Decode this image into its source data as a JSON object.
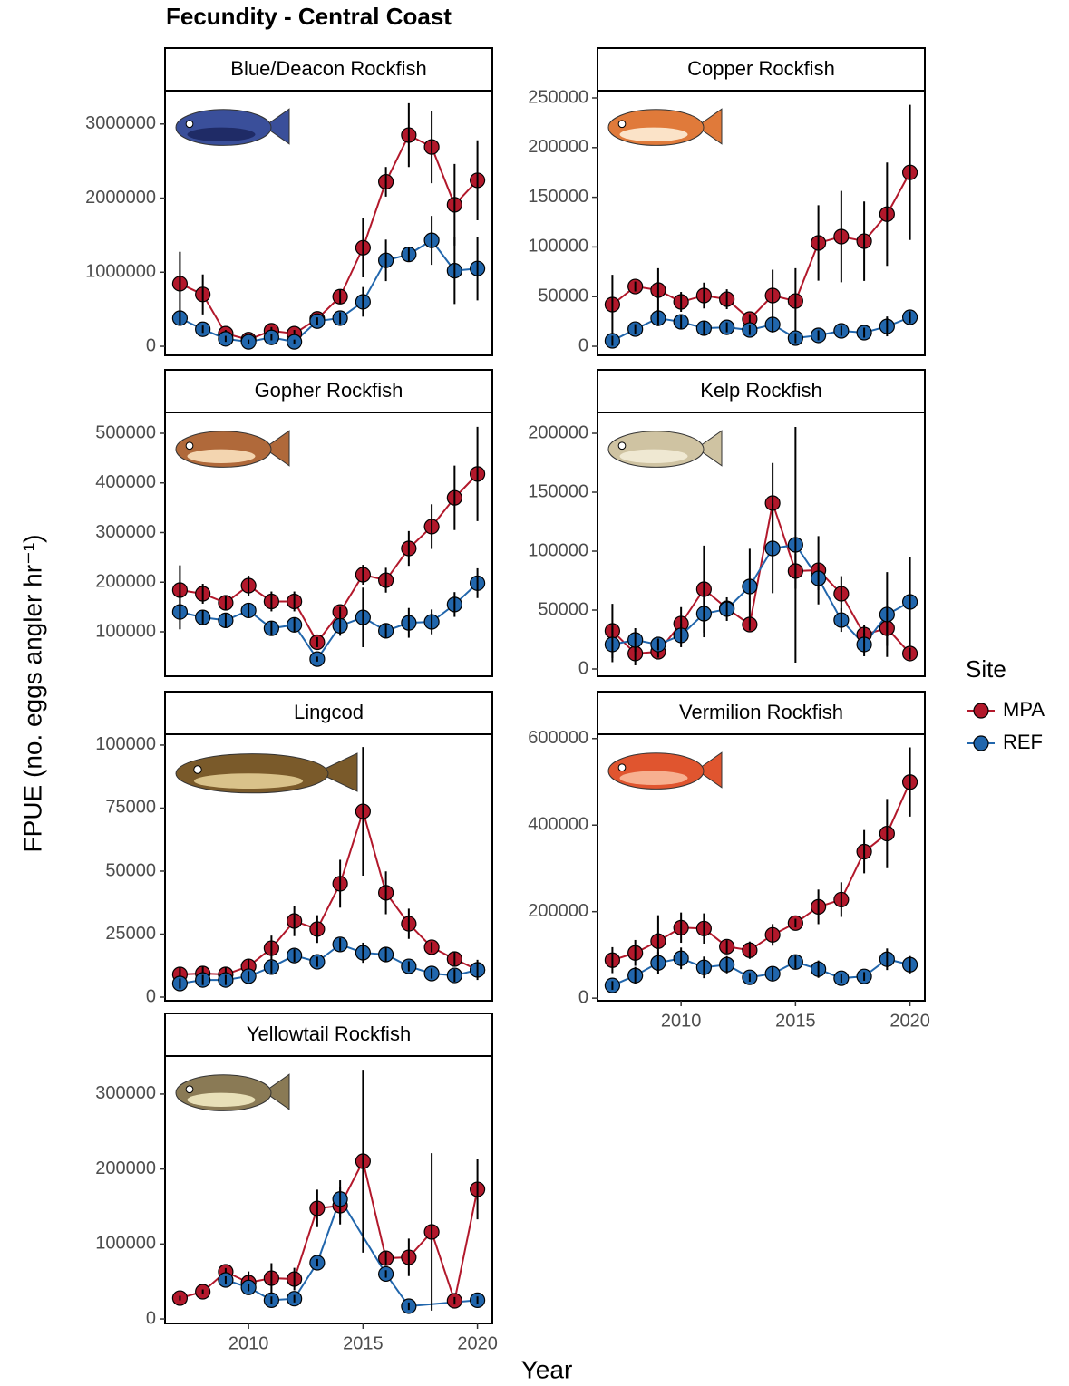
{
  "title": "Fecundity - Central Coast",
  "xlabel": "Year",
  "ylabel": "FPUE (no. eggs angler hr⁻¹)",
  "legend_title": "Site",
  "chart_data": [
    {
      "type": "line",
      "title": "Blue/Deacon Rockfish",
      "x": [
        2007,
        2008,
        2009,
        2010,
        2011,
        2012,
        2013,
        2014,
        2015,
        2016,
        2017,
        2018,
        2019,
        2020
      ],
      "xlim": [
        2006.35,
        2020.65
      ],
      "ylim": [
        -122000,
        3450000
      ],
      "yticks": [
        0,
        1000000,
        2000000,
        3000000
      ],
      "series": [
        {
          "name": "MPA",
          "color": "#b2182b",
          "values": [
            845000,
            700000,
            170000,
            90000,
            210000,
            170000,
            370000,
            670000,
            1330000,
            2220000,
            2850000,
            2690000,
            1910000,
            2240000
          ],
          "errors": [
            430000,
            270000,
            50000,
            40000,
            50000,
            50000,
            50000,
            100000,
            400000,
            200000,
            430000,
            490000,
            550000,
            540000
          ]
        },
        {
          "name": "REF",
          "color": "#2166ac",
          "values": [
            380000,
            230000,
            100000,
            60000,
            120000,
            60000,
            340000,
            380000,
            600000,
            1160000,
            1240000,
            1430000,
            1020000,
            1050000
          ],
          "errors": [
            100000,
            50000,
            40000,
            30000,
            40000,
            30000,
            50000,
            80000,
            200000,
            280000,
            100000,
            330000,
            450000,
            430000
          ]
        }
      ]
    },
    {
      "type": "line",
      "title": "Copper Rockfish",
      "x": [
        2007,
        2008,
        2009,
        2010,
        2011,
        2012,
        2013,
        2014,
        2015,
        2016,
        2017,
        2018,
        2019,
        2020
      ],
      "xlim": [
        2006.35,
        2020.65
      ],
      "ylim": [
        -9100,
        257300
      ],
      "yticks": [
        0,
        50000,
        100000,
        150000,
        200000,
        250000
      ],
      "series": [
        {
          "name": "MPA",
          "color": "#b2182b",
          "values": [
            42000,
            60200,
            56600,
            44700,
            51100,
            47400,
            27400,
            51100,
            45600,
            104000,
            110400,
            105800,
            133000,
            175000
          ],
          "errors": [
            30000,
            5000,
            22000,
            10000,
            13000,
            10000,
            5000,
            26000,
            33000,
            38000,
            46000,
            40000,
            52000,
            68000
          ]
        },
        {
          "name": "REF",
          "color": "#2166ac",
          "values": [
            5500,
            17300,
            28300,
            24600,
            18200,
            19100,
            16400,
            21900,
            8200,
            11000,
            15500,
            13700,
            20000,
            29200
          ],
          "errors": [
            5000,
            5000,
            8000,
            7000,
            7000,
            5000,
            5000,
            8000,
            5000,
            5000,
            5000,
            5000,
            10000,
            6000
          ]
        }
      ]
    },
    {
      "type": "line",
      "title": "Gopher Rockfish",
      "x": [
        2007,
        2008,
        2009,
        2010,
        2011,
        2012,
        2013,
        2014,
        2015,
        2016,
        2017,
        2018,
        2019,
        2020
      ],
      "xlim": [
        2006.35,
        2020.65
      ],
      "ylim": [
        10500,
        542000
      ],
      "yticks": [
        100000,
        200000,
        300000,
        400000,
        500000
      ],
      "series": [
        {
          "name": "MPA",
          "color": "#b2182b",
          "values": [
            184000,
            176700,
            158400,
            193100,
            161200,
            161200,
            79000,
            140000,
            215000,
            204000,
            268000,
            312000,
            370000,
            418000
          ],
          "errors": [
            50000,
            20000,
            15000,
            20000,
            20000,
            20000,
            10000,
            10000,
            20000,
            25000,
            35000,
            45000,
            65000,
            95000
          ]
        },
        {
          "name": "REF",
          "color": "#2166ac",
          "values": [
            140000,
            129000,
            123000,
            143000,
            107000,
            114000,
            45000,
            112000,
            129000,
            102000,
            118000,
            120000,
            155000,
            198000
          ],
          "errors": [
            35000,
            15000,
            15000,
            15000,
            15000,
            15000,
            5000,
            20000,
            60000,
            15000,
            30000,
            25000,
            25000,
            30000
          ]
        }
      ]
    },
    {
      "type": "line",
      "title": "Kelp Rockfish",
      "x": [
        2007,
        2008,
        2009,
        2010,
        2011,
        2012,
        2013,
        2014,
        2015,
        2016,
        2017,
        2018,
        2019,
        2020
      ],
      "xlim": [
        2006.35,
        2020.65
      ],
      "ylim": [
        -6150,
        217700
      ],
      "yticks": [
        0,
        50000,
        100000,
        150000,
        200000
      ],
      "series": [
        {
          "name": "MPA",
          "color": "#b2182b",
          "values": [
            32300,
            13100,
            14600,
            38500,
            67700,
            51500,
            37700,
            140800,
            83100,
            83800,
            63800,
            29200,
            34600,
            13100
          ],
          "errors": [
            23000,
            10000,
            5000,
            14000,
            37000,
            5000,
            5000,
            34000,
            15000,
            29000,
            15000,
            8000,
            15000,
            5000
          ]
        },
        {
          "name": "REF",
          "color": "#2166ac",
          "values": [
            20800,
            24600,
            20800,
            28500,
            46900,
            50800,
            70000,
            102300,
            105400,
            76900,
            41500,
            20800,
            46200,
            56900
          ],
          "errors": [
            15000,
            10000,
            5000,
            10000,
            20000,
            10000,
            32000,
            38000,
            100000,
            10000,
            10000,
            10000,
            36000,
            38000
          ]
        }
      ]
    },
    {
      "type": "line",
      "title": "Lingcod",
      "x": [
        2007,
        2008,
        2009,
        2010,
        2011,
        2012,
        2013,
        2014,
        2015,
        2016,
        2017,
        2018,
        2019,
        2020
      ],
      "xlim": [
        2006.35,
        2020.65
      ],
      "ylim": [
        -1440,
        104300
      ],
      "yticks": [
        0,
        25000,
        50000,
        75000,
        100000
      ],
      "series": [
        {
          "name": "MPA",
          "color": "#b2182b",
          "values": [
            9000,
            9350,
            9000,
            12200,
            19400,
            30200,
            27000,
            45000,
            73700,
            41400,
            29100,
            19800,
            15100,
            10800
          ],
          "errors": [
            3000,
            3000,
            3000,
            3000,
            5000,
            6000,
            5500,
            9500,
            25500,
            8500,
            6000,
            2000,
            3000,
            4000
          ]
        },
        {
          "name": "REF",
          "color": "#2166ac",
          "values": [
            5400,
            6800,
            6800,
            8300,
            11900,
            16500,
            14000,
            20900,
            17600,
            16900,
            12200,
            9350,
            8600,
            10800
          ],
          "errors": [
            2000,
            2000,
            2000,
            2000,
            2500,
            2500,
            2000,
            2500,
            4000,
            3000,
            2000,
            2000,
            2500,
            3000
          ]
        }
      ]
    },
    {
      "type": "line",
      "title": "Vermilion Rockfish",
      "x": [
        2007,
        2008,
        2009,
        2010,
        2011,
        2012,
        2013,
        2014,
        2015,
        2016,
        2017,
        2018,
        2019,
        2020
      ],
      "xlim": [
        2006.35,
        2020.65
      ],
      "xticks": [
        2010,
        2015,
        2020
      ],
      "ylim": [
        -6000,
        610000
      ],
      "yticks": [
        0,
        200000,
        400000,
        600000
      ],
      "series": [
        {
          "name": "MPA",
          "color": "#b2182b",
          "values": [
            87800,
            104500,
            131700,
            163000,
            161000,
            119100,
            110800,
            146300,
            173500,
            211100,
            227800,
            338600,
            380400,
            499500
          ],
          "errors": [
            30000,
            30000,
            60000,
            35000,
            35000,
            15000,
            20000,
            25000,
            10000,
            40000,
            40000,
            50000,
            80000,
            80000
          ]
        },
        {
          "name": "REF",
          "color": "#2166ac",
          "values": [
            29300,
            52200,
            81500,
            92000,
            71100,
            77300,
            48100,
            56400,
            83600,
            66900,
            46000,
            50200,
            89900,
            77300
          ],
          "errors": [
            10000,
            20000,
            25000,
            25000,
            25000,
            20000,
            10000,
            15000,
            15000,
            20000,
            10000,
            10000,
            25000,
            20000
          ]
        }
      ]
    },
    {
      "type": "line",
      "title": "Yellowtail Rockfish",
      "x": [
        2007,
        2008,
        2009,
        2010,
        2011,
        2012,
        2013,
        2014,
        2015,
        2016,
        2017,
        2018,
        2019,
        2020
      ],
      "xlim": [
        2006.35,
        2020.65
      ],
      "xticks": [
        2010,
        2015,
        2020
      ],
      "ylim": [
        -6000,
        350700
      ],
      "yticks": [
        0,
        100000,
        200000,
        300000
      ],
      "series": [
        {
          "name": "MPA",
          "color": "#b2182b",
          "values": [
            27800,
            36300,
            62900,
            48400,
            54400,
            53200,
            147500,
            151100,
            210400,
            81000,
            82200,
            116100,
            24200,
            172900
          ],
          "errors": [
            3000,
            3000,
            5000,
            15000,
            20000,
            15000,
            25000,
            25000,
            122000,
            10000,
            25000,
            105000,
            5000,
            40000
          ]
        },
        {
          "name": "REF",
          "color": "#2166ac",
          "x": [
            2009,
            2010,
            2011,
            2012,
            2013,
            2014,
            2016,
            2017,
            2020
          ],
          "values": [
            52000,
            42000,
            25000,
            27000,
            75000,
            160000,
            60000,
            17000,
            25000
          ],
          "errors": [
            5000,
            5000,
            5000,
            5000,
            5000,
            25000,
            5000,
            5000,
            5000
          ]
        }
      ]
    }
  ]
}
